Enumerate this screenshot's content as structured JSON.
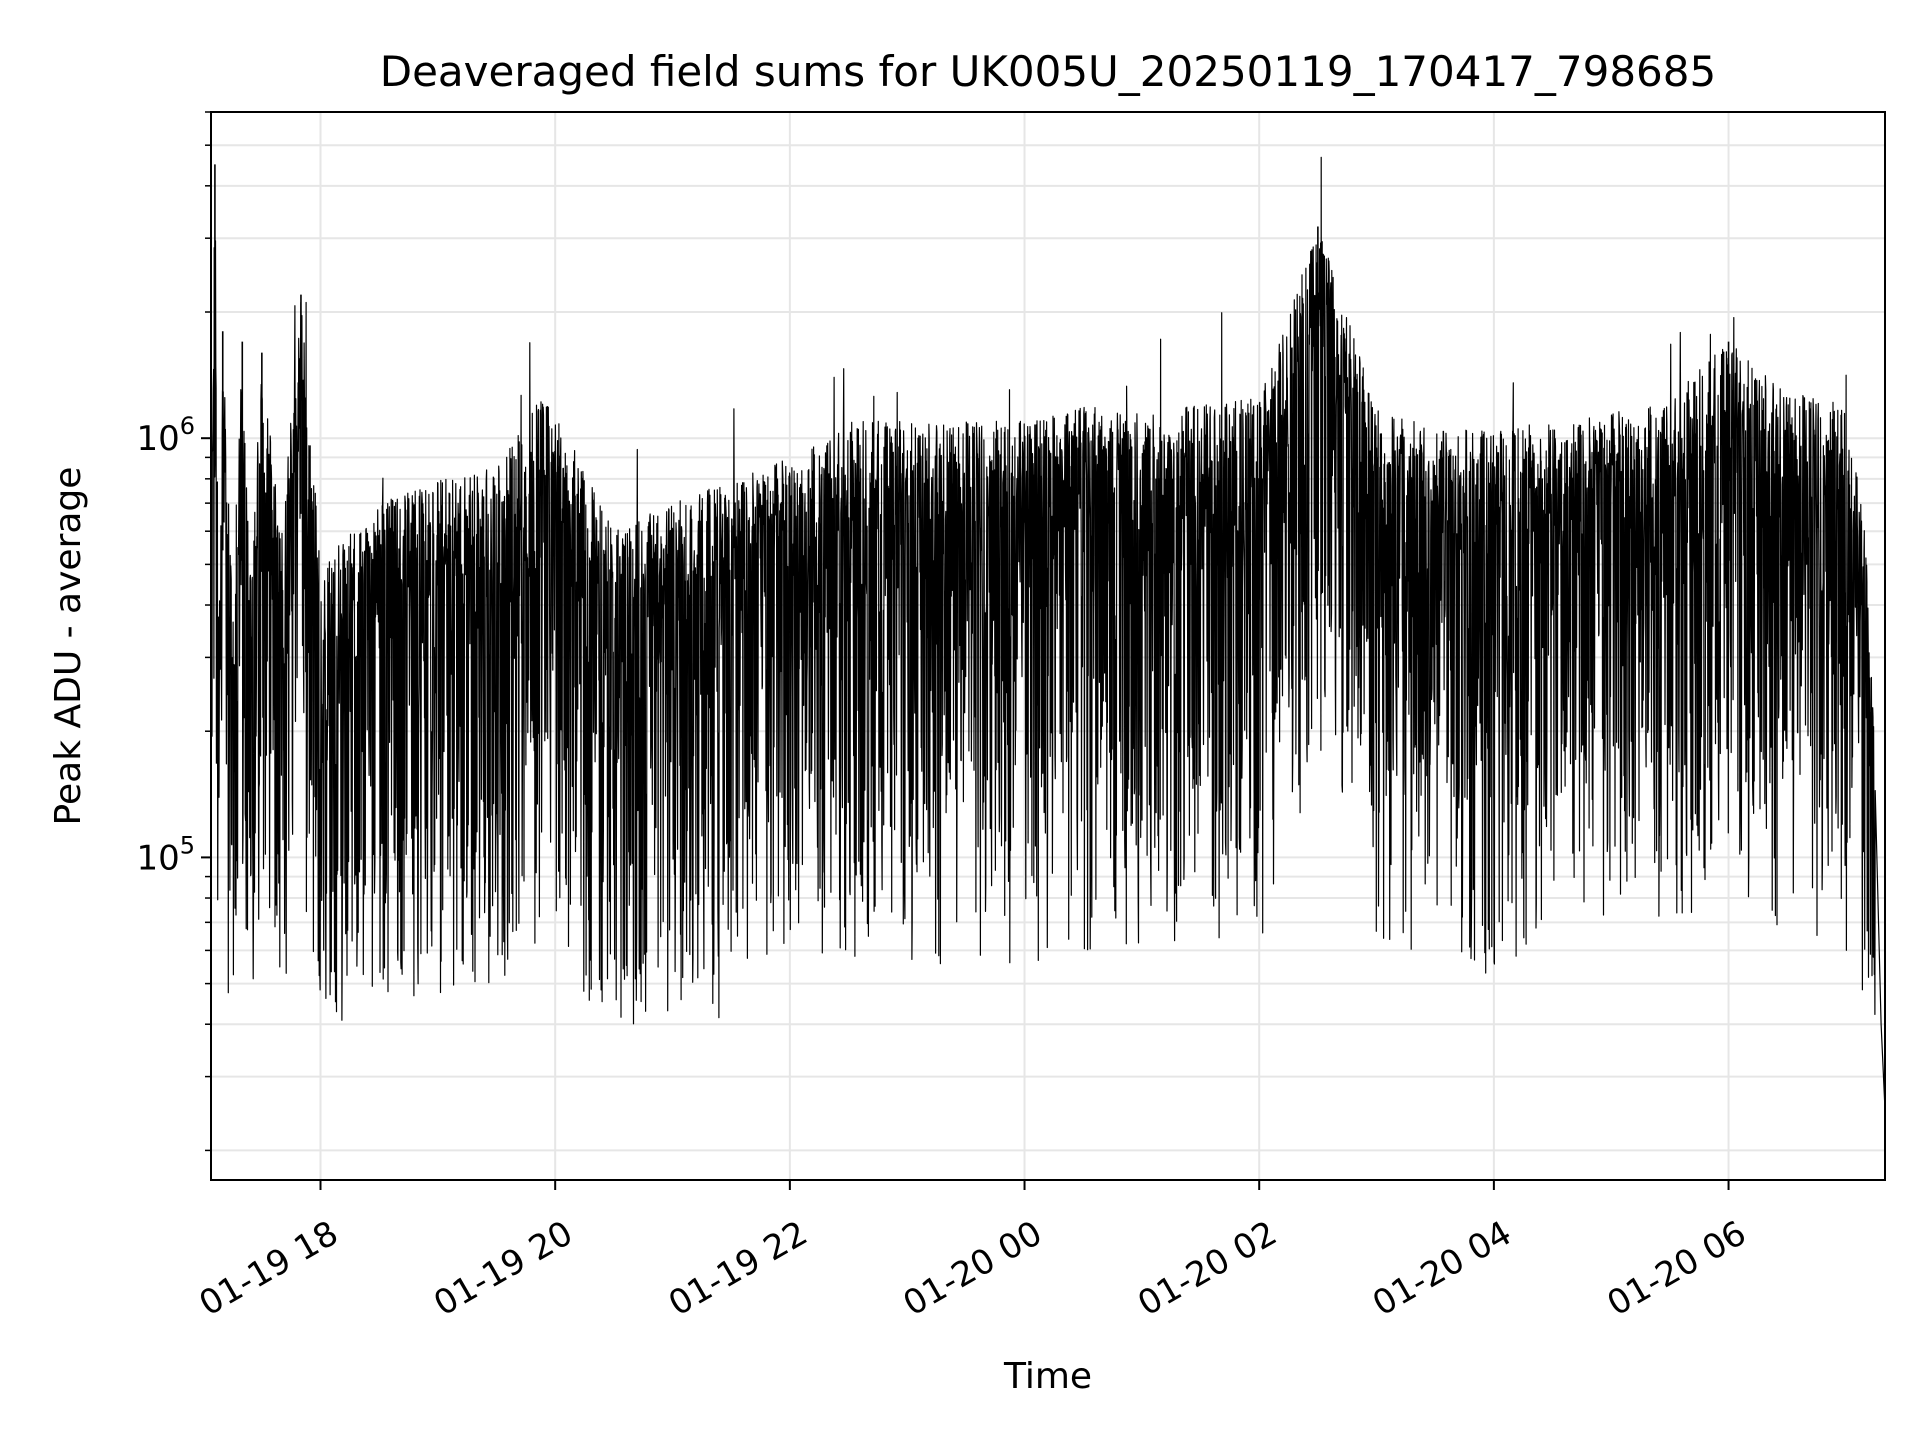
{
  "chart_data": {
    "type": "line",
    "title": "Deaveraged field sums for UK005U_20250119_170417_798685",
    "xlabel": "Time",
    "ylabel": "Peak ADU - average",
    "y_scale": "log",
    "xlim": [
      "2025-01-19T17:04",
      "2025-01-20T07:20"
    ],
    "ylim": [
      17000,
      6000000
    ],
    "x_ticks": [
      {
        "t": "2025-01-19T18:00",
        "label": "01-19 18"
      },
      {
        "t": "2025-01-19T20:00",
        "label": "01-19 20"
      },
      {
        "t": "2025-01-19T22:00",
        "label": "01-19 22"
      },
      {
        "t": "2025-01-20T00:00",
        "label": "01-20 00"
      },
      {
        "t": "2025-01-20T02:00",
        "label": "01-20 02"
      },
      {
        "t": "2025-01-20T04:00",
        "label": "01-20 04"
      },
      {
        "t": "2025-01-20T06:00",
        "label": "01-20 06"
      }
    ],
    "y_ticks": [
      {
        "value": 100000,
        "base": "10",
        "exp": "5"
      },
      {
        "value": 1000000,
        "base": "10",
        "exp": "6"
      }
    ],
    "grid": true,
    "line_color": "#000000",
    "grid_color": "#e6e6e6",
    "trend_note": "dense noisy series oscillating roughly between 5e4 and 1.3e6",
    "series": [
      {
        "x": [
          "2025-01-19T17:04",
          "2025-01-19T17:06",
          "2025-01-19T17:08",
          "2025-01-19T17:10",
          "2025-01-19T17:15",
          "2025-01-19T17:20",
          "2025-01-19T17:25",
          "2025-01-19T17:30",
          "2025-01-19T17:40",
          "2025-01-19T17:50",
          "2025-01-19T18:00",
          "2025-01-19T18:30",
          "2025-01-19T19:00",
          "2025-01-19T19:30",
          "2025-01-19T19:55",
          "2025-01-19T20:30",
          "2025-01-19T21:00",
          "2025-01-19T21:30",
          "2025-01-19T22:00",
          "2025-01-19T22:30",
          "2025-01-19T23:00",
          "2025-01-19T23:30",
          "2025-01-20T00:00",
          "2025-01-20T00:30",
          "2025-01-20T01:00",
          "2025-01-20T01:30",
          "2025-01-20T02:00",
          "2025-01-20T02:30",
          "2025-01-20T03:00",
          "2025-01-20T03:30",
          "2025-01-20T04:00",
          "2025-01-20T04:30",
          "2025-01-20T05:00",
          "2025-01-20T05:30",
          "2025-01-20T06:00",
          "2025-01-20T06:30",
          "2025-01-20T07:00",
          "2025-01-20T07:10",
          "2025-01-20T07:15",
          "2025-01-20T07:18",
          "2025-01-20T07:20"
        ],
        "y": [
          500000,
          4500000,
          300000,
          1800000,
          400000,
          1700000,
          500000,
          1600000,
          600000,
          2200000,
          500000,
          700000,
          800000,
          850000,
          1300000,
          600000,
          700000,
          800000,
          900000,
          1100000,
          1100000,
          1100000,
          1100000,
          1200000,
          1150000,
          1200000,
          1250000,
          3200000,
          1200000,
          1050000,
          1050000,
          1100000,
          1150000,
          1250000,
          1700000,
          1300000,
          1200000,
          600000,
          170000,
          40000,
          25000
        ]
      }
    ]
  }
}
